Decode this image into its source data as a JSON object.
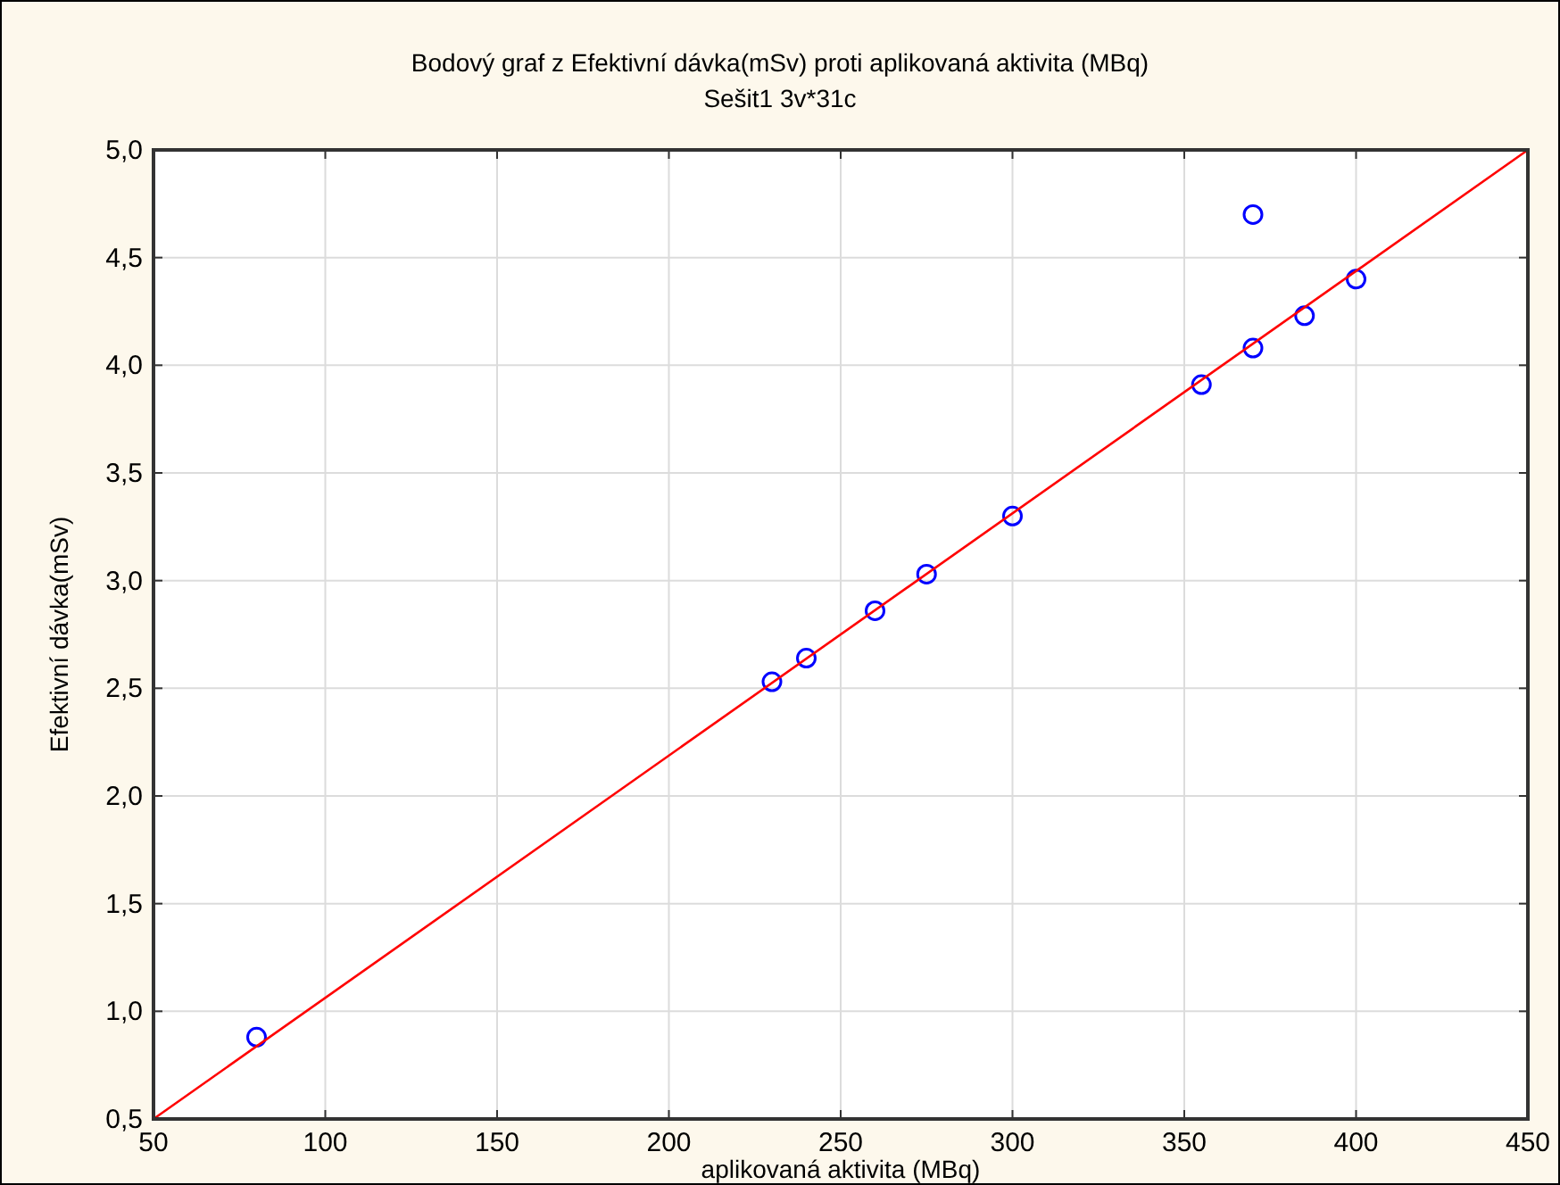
{
  "chart_data": {
    "type": "scatter",
    "title": "Bodový graf z Efektivní dávka(mSv) proti aplikovaná aktivita (MBq)",
    "subtitle": "Sešit1 3v*31c",
    "xlabel": "aplikovaná aktivita (MBq)",
    "ylabel": "Efektivní dávka(mSv)",
    "series": [
      {
        "color": "#0000ff",
        "marker": "circle",
        "x": [
          80,
          230,
          240,
          260,
          275,
          300,
          355,
          370,
          370,
          385,
          400
        ],
        "values": [
          0.88,
          2.53,
          2.64,
          2.86,
          3.03,
          3.3,
          3.91,
          4.08,
          4.7,
          4.23,
          4.4
        ]
      },
      {
        "type": "line",
        "color": "#ff0000",
        "marker": "none",
        "line_style": "solid",
        "x": [
          50,
          450
        ],
        "values": [
          0.5,
          5.0
        ]
      }
    ],
    "xlim": [
      50,
      450
    ],
    "xticks": [
      50,
      100,
      150,
      200,
      250,
      300,
      350,
      400,
      450
    ],
    "ylim": [
      0.5,
      5.0
    ],
    "yticks": [
      {
        "value": 0.5,
        "label": "0,5"
      },
      {
        "value": 1.0,
        "label": "1,0"
      },
      {
        "value": 1.5,
        "label": "1,5"
      },
      {
        "value": 2.0,
        "label": "2,0"
      },
      {
        "value": 2.5,
        "label": "2,5"
      },
      {
        "value": 3.0,
        "label": "3,0"
      },
      {
        "value": 3.5,
        "label": "3,5"
      },
      {
        "value": 4.0,
        "label": "4,0"
      },
      {
        "value": 4.5,
        "label": "4,5"
      },
      {
        "value": 5.0,
        "label": "5,0"
      }
    ],
    "grid": true
  }
}
